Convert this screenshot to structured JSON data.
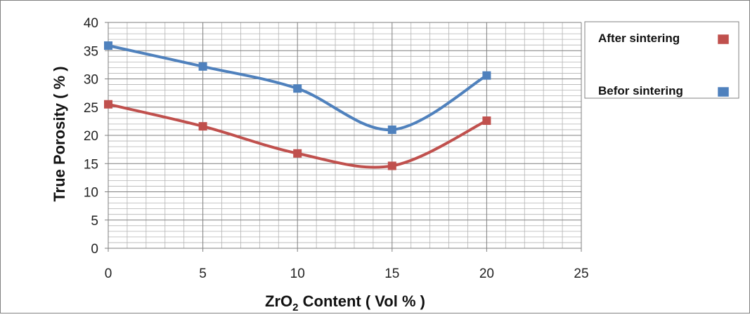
{
  "chart_data": {
    "type": "line",
    "xlabel": {
      "main": "ZrO",
      "sub": "2",
      "rest": " Content ( Vol % )"
    },
    "ylabel": "True Porosity ( % )",
    "xlim": [
      0,
      25
    ],
    "ylim": [
      0,
      40
    ],
    "x_ticks": [
      0,
      5,
      10,
      15,
      20,
      25
    ],
    "y_ticks": [
      0,
      5,
      10,
      15,
      20,
      25,
      30,
      35,
      40
    ],
    "x_tick_labels": [
      "0",
      "5",
      "10",
      "15",
      "20",
      "25"
    ],
    "y_tick_labels": [
      "0",
      "5",
      "10",
      "15",
      "20",
      "25",
      "30",
      "35",
      "40"
    ],
    "grid": true,
    "legend_position": "right",
    "smooth": true,
    "series": [
      {
        "name": "After sintering",
        "color": "#c0504d",
        "marker": "square",
        "x": [
          0,
          5,
          10,
          15,
          20
        ],
        "y": [
          25.5,
          21.6,
          16.8,
          14.6,
          22.6
        ]
      },
      {
        "name": "Befor sintering",
        "color": "#4f81bd",
        "marker": "square",
        "x": [
          0,
          5,
          10,
          15,
          20
        ],
        "y": [
          35.9,
          32.2,
          28.3,
          21.0,
          30.6
        ]
      }
    ]
  }
}
